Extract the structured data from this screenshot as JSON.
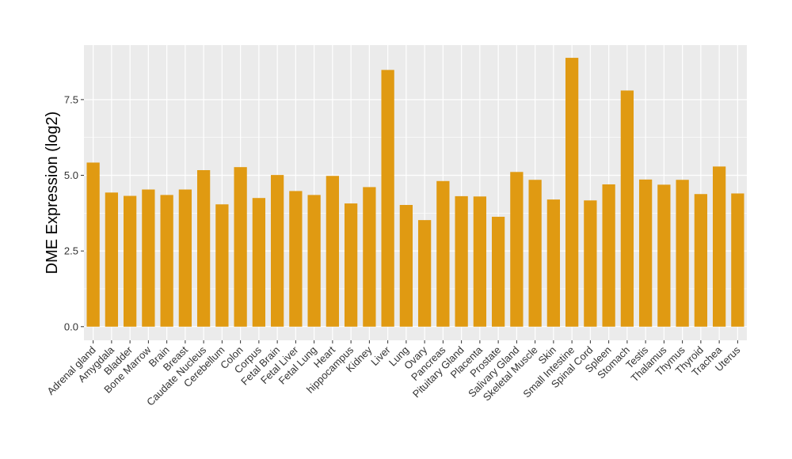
{
  "chart_data": {
    "type": "bar",
    "ylabel": "DME Expression (log2)",
    "xlabel": "",
    "ylim": [
      -0.45,
      9.3
    ],
    "yticks": [
      0.0,
      2.5,
      5.0,
      7.5
    ],
    "ytick_labels": [
      "0.0",
      "2.5",
      "5.0",
      "7.5"
    ],
    "grid": true,
    "bar_color": "#E09A12",
    "panel_color": "#EBEBEB",
    "grid_color": "#FFFFFF",
    "categories": [
      "Adrenal gland",
      "Amygdala",
      "Bladder",
      "Bone Marrow",
      "Brain",
      "Breast",
      "Caudate Nucleus",
      "Cerebellum",
      "Colon",
      "Corpus",
      "Fetal Brain",
      "Fetal Liver",
      "Fetal Lung",
      "Heart",
      "hippocampus",
      "Kidney",
      "Liver",
      "Lung",
      "Ovary",
      "Pancreas",
      "Pituitary Gland",
      "Placenta",
      "Prostate",
      "Salivary Gland",
      "Skeletal Muscle",
      "Skin",
      "Small Intestine",
      "Spinal Cord",
      "Spleen",
      "Stomach",
      "Testis",
      "Thalamus",
      "Thymus",
      "Thyroid",
      "Trachea",
      "Uterus"
    ],
    "values": [
      5.42,
      4.43,
      4.32,
      4.53,
      4.35,
      4.53,
      5.17,
      4.04,
      5.27,
      4.25,
      5.01,
      4.48,
      4.35,
      4.98,
      4.07,
      4.61,
      8.48,
      4.02,
      3.52,
      4.81,
      4.31,
      4.3,
      3.63,
      5.11,
      4.85,
      4.2,
      8.88,
      4.17,
      4.7,
      7.8,
      4.86,
      4.69,
      4.85,
      4.38,
      5.29,
      4.4
    ]
  }
}
